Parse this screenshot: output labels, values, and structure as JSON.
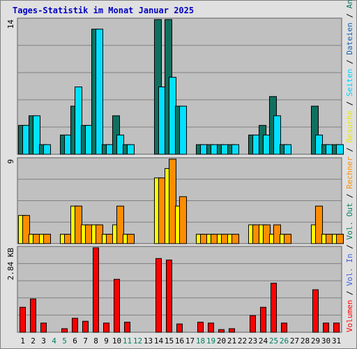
{
  "chart_data": {
    "type": "bar",
    "title": "Tages-Statistik im Monat Januar 2025",
    "x": [
      "1",
      "2",
      "3",
      "4",
      "5",
      "6",
      "7",
      "8",
      "9",
      "10",
      "11",
      "12",
      "13",
      "14",
      "15",
      "16",
      "17",
      "18",
      "19",
      "20",
      "21",
      "22",
      "23",
      "24",
      "25",
      "26",
      "27",
      "28",
      "29",
      "30",
      "31"
    ],
    "weekend_days": [
      "4",
      "5",
      "11",
      "12",
      "18",
      "19",
      "25",
      "26"
    ],
    "panels": [
      {
        "ymax_label": "14",
        "ymax": 14,
        "series": [
          {
            "name": "Anfragen",
            "color": "#107060",
            "values": [
              3,
              4,
              1,
              0,
              2,
              5,
              3,
              13,
              1,
              4,
              1,
              0,
              0,
              14,
              14,
              5,
              0,
              1,
              1,
              1,
              1,
              0,
              2,
              3,
              6,
              1,
              0,
              0,
              5,
              1,
              1
            ]
          },
          {
            "name": "Dateien",
            "color": "#00e0ff",
            "values": [
              3,
              4,
              1,
              0,
              2,
              7,
              3,
              13,
              1,
              2,
              1,
              0,
              0,
              7,
              8,
              5,
              0,
              1,
              1,
              1,
              1,
              0,
              2,
              2,
              4,
              1,
              0,
              0,
              2,
              1,
              1
            ]
          }
        ]
      },
      {
        "ymax_label": "9",
        "ymax": 9,
        "series": [
          {
            "name": "Besuche",
            "color": "#ffff00",
            "values": [
              3,
              1,
              1,
              0,
              1,
              4,
              2,
              2,
              1,
              2,
              1,
              0,
              0,
              7,
              8,
              4,
              0,
              1,
              1,
              1,
              1,
              0,
              2,
              2,
              1,
              1,
              0,
              0,
              2,
              1,
              1
            ]
          },
          {
            "name": "Rechner",
            "color": "#ff8c00",
            "values": [
              3,
              1,
              1,
              0,
              1,
              4,
              2,
              2,
              1,
              4,
              1,
              0,
              0,
              7,
              9,
              5,
              0,
              1,
              1,
              1,
              1,
              0,
              2,
              2,
              2,
              1,
              0,
              0,
              4,
              1,
              1
            ]
          }
        ]
      },
      {
        "ymax_label": "2.84 KB",
        "ymax": 2.84,
        "series": [
          {
            "name": "Volumen",
            "color": "#ff0000",
            "values": [
              0.84,
              1.12,
              0.31,
              0,
              0.12,
              0.47,
              0.37,
              2.84,
              0.31,
              1.78,
              0.34,
              0,
              0,
              2.48,
              2.43,
              0.28,
              0,
              0.34,
              0.31,
              0.09,
              0.12,
              0,
              0.56,
              0.84,
              1.65,
              0.31,
              0,
              0,
              1.43,
              0.31,
              0.31
            ]
          }
        ]
      }
    ],
    "legend_right": [
      {
        "text": "Volumen",
        "color": "#ff0000"
      },
      {
        "text": "Vol. In",
        "color": "#4060e0"
      },
      {
        "text": "Vol. Out",
        "color": "#008060"
      },
      {
        "text": "Rechner",
        "color": "#ff8c00"
      },
      {
        "text": "Besuche",
        "color": "#e8e800"
      },
      {
        "text": "Seiten",
        "color": "#00d0ff"
      },
      {
        "text": "Dateien",
        "color": "#1060b0"
      },
      {
        "text": "Anfragen",
        "color": "#107060"
      }
    ],
    "legend_separator": "/",
    "colors": {
      "background": "#e0e0e0",
      "plot_bg": "#c0c0c0",
      "grid": "#808080",
      "weekday_label": "#000000",
      "weekend_label": "#008060"
    }
  }
}
